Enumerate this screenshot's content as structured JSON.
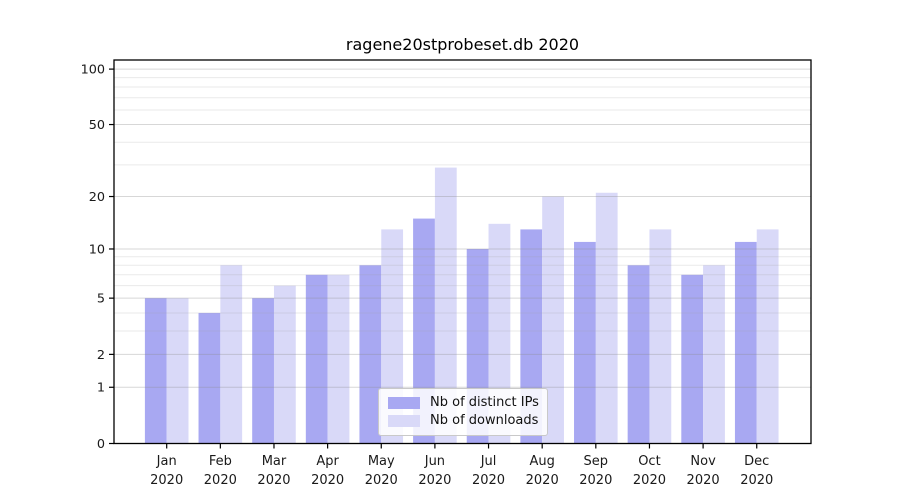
{
  "chart_data": {
    "type": "bar",
    "title": "ragene20stprobeset.db 2020",
    "categories": [
      "Jan 2020",
      "Feb 2020",
      "Mar 2020",
      "Apr 2020",
      "May 2020",
      "Jun 2020",
      "Jul 2020",
      "Aug 2020",
      "Sep 2020",
      "Oct 2020",
      "Nov 2020",
      "Dec 2020"
    ],
    "series": [
      {
        "name": "Nb of distinct IPs",
        "color": "#a8a8f2",
        "values": [
          5,
          4,
          5,
          7,
          8,
          15,
          10,
          13,
          11,
          8,
          7,
          11
        ]
      },
      {
        "name": "Nb of downloads",
        "color": "#d9d9f8",
        "values": [
          5,
          8,
          6,
          7,
          13,
          29,
          14,
          20,
          21,
          13,
          8,
          13
        ]
      }
    ],
    "xlabel": "",
    "ylabel": "",
    "y_scale": "log10(1+x)",
    "ylim": [
      0,
      112
    ],
    "y_ticks": [
      0,
      1,
      2,
      5,
      10,
      20,
      50,
      100
    ],
    "y_minor_ticks": [
      3,
      4,
      6,
      7,
      8,
      9,
      30,
      40,
      60,
      70,
      80,
      90
    ],
    "grid": "on",
    "legend_position": "bottom-center",
    "colors": {
      "axis": "#000000",
      "tick_text": "#1a1a1a",
      "grid_major": "#d6d6d6",
      "grid_minor": "#eaeaea",
      "background": "#ffffff"
    }
  }
}
